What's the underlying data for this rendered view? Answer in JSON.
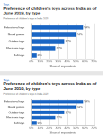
{
  "chart_data": [
    {
      "type": "bar",
      "orientation": "horizontal",
      "annotations": [
        "Toys"
      ],
      "title": "Preference of children's toys across India as of June 2019, by type",
      "subtitle": "Preference of children's toys in India 2019",
      "x_label": "Share of respondents",
      "categories": [
        "Educational toys",
        "Board games",
        "Outdoor toys",
        "Electronic toys",
        "Soft toys"
      ],
      "values": [
        58,
        50,
        37,
        27,
        6
      ],
      "value_labels": [
        "58%",
        "50%",
        "37%",
        "27%",
        "6%"
      ],
      "data_labels": true,
      "color": "#1a66c4",
      "xlim": [
        0,
        70
      ],
      "xticks": [
        {
          "value": 0,
          "label": "0%"
        },
        {
          "value": 10,
          "label": "10%"
        },
        {
          "value": 20,
          "label": "20%"
        },
        {
          "value": 30,
          "label": "30%"
        },
        {
          "value": 40,
          "label": "40%"
        },
        {
          "value": 50,
          "label": "50%"
        },
        {
          "value": 60,
          "label": "60%"
        },
        {
          "value": 70,
          "label": "70%"
        }
      ],
      "grid": true
    },
    {
      "type": "bar",
      "orientation": "horizontal",
      "annotations": [
        "Toys"
      ],
      "title": "Preference of children's toys across India as of June 2019, by type",
      "subtitle": "Preference of children's toys in India 2019",
      "x_label": "Share of respondents",
      "categories": [
        "Educational toys",
        "Board games",
        "Outdoor toys",
        "Electronic toys",
        "Soft toys"
      ],
      "values": [
        58,
        50,
        37,
        27,
        6
      ],
      "value_labels": [
        "58%",
        "50%",
        "37%",
        "27%",
        "6%"
      ],
      "data_labels": true,
      "color": "#1a66c4",
      "xlim": [
        0,
        70
      ],
      "xticks": [
        {
          "value": 0,
          "label": "0%"
        },
        {
          "value": 10,
          "label": "10%"
        },
        {
          "value": 20,
          "label": "20%"
        },
        {
          "value": 30,
          "label": "30%"
        },
        {
          "value": 40,
          "label": "40%"
        },
        {
          "value": 50,
          "label": "50%"
        },
        {
          "value": 60,
          "label": "60%"
        },
        {
          "value": 70,
          "label": "70%"
        }
      ],
      "grid": true
    }
  ]
}
